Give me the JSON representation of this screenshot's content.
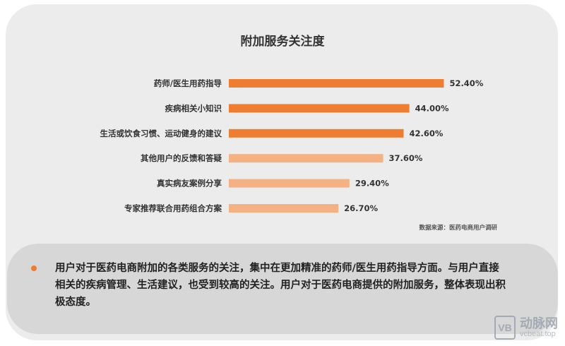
{
  "chart_data": {
    "type": "bar",
    "orientation": "horizontal",
    "title": "附加服务关注度",
    "categories": [
      "药师/医生用药指导",
      "疾病相关小知识",
      "生活或饮食习惯、运动健身的建议",
      "其他用户的反馈和答疑",
      "真实病友案例分享",
      "专家推荐联合用药组合方案"
    ],
    "values": [
      52.4,
      44.0,
      42.6,
      37.6,
      29.4,
      26.7
    ],
    "value_labels": [
      "52.40%",
      "44.00%",
      "42.60%",
      "37.60%",
      "29.40%",
      "26.70%"
    ],
    "bar_colors": [
      "#ee7d31",
      "#ee7d31",
      "#ee7d31",
      "#f4b183",
      "#f4b183",
      "#f4b183"
    ],
    "xlim": [
      0,
      100
    ],
    "grid": false,
    "legend": "none"
  },
  "source_note": "数据来源：医药电商用户调研",
  "summary": "用户对于医药电商附加的各类服务的关注，集中在更加精准的药师/医生用药指导方面。与用户直接相关的疾病管理、生活建议，也受到较高的关注。用户对于医药电商提供的附加服务，整体表现出积极态度。",
  "watermark": {
    "logo": "VB",
    "name": "动脉网",
    "url": "vcbeat.top"
  },
  "colors": {
    "accent": "#ee7d31",
    "accent_light": "#f4b183",
    "background": "#ececec"
  }
}
